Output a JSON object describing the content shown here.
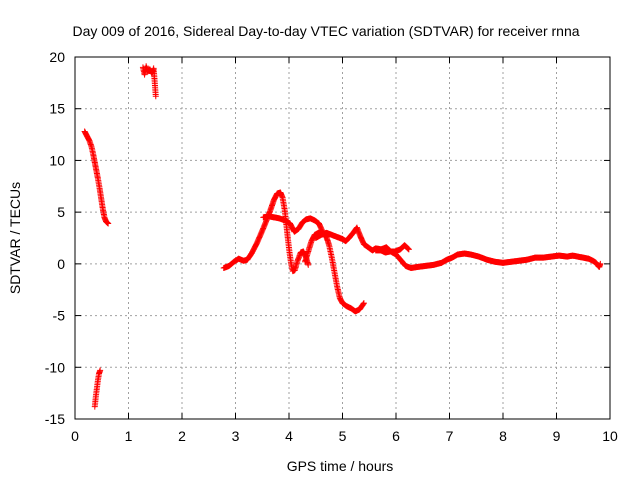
{
  "chart_data": {
    "type": "scatter",
    "title": "Day 009 of 2016, Sidereal Day-to-day VTEC variation (SDTVAR) for receiver rnna",
    "xlabel": "GPS time / hours",
    "ylabel": "SDTVAR / TECUs",
    "xlim": [
      0,
      10
    ],
    "ylim": [
      -15,
      20
    ],
    "xticks": [
      0,
      1,
      2,
      3,
      4,
      5,
      6,
      7,
      8,
      9,
      10
    ],
    "yticks": [
      -15,
      -10,
      -5,
      0,
      5,
      10,
      15,
      20
    ],
    "grid": true,
    "marker": "+",
    "series": [
      {
        "name": "SDTVAR",
        "color": "#ff0000",
        "segments": [
          [
            [
              0.18,
              12.8
            ],
            [
              0.22,
              12.4
            ],
            [
              0.27,
              11.9
            ],
            [
              0.31,
              11.3
            ],
            [
              0.34,
              10.6
            ],
            [
              0.37,
              9.8
            ],
            [
              0.4,
              9.0
            ],
            [
              0.43,
              8.2
            ],
            [
              0.46,
              7.3
            ],
            [
              0.49,
              6.3
            ],
            [
              0.52,
              5.3
            ],
            [
              0.55,
              4.5
            ],
            [
              0.58,
              4.1
            ],
            [
              0.62,
              3.9
            ]
          ],
          [
            [
              0.37,
              -13.8
            ],
            [
              0.39,
              -12.8
            ],
            [
              0.41,
              -12.0
            ],
            [
              0.43,
              -11.2
            ],
            [
              0.45,
              -10.6
            ],
            [
              0.47,
              -10.3
            ]
          ],
          [
            [
              1.27,
              19.0
            ],
            [
              1.3,
              18.3
            ],
            [
              1.33,
              19.1
            ],
            [
              1.36,
              18.6
            ],
            [
              1.4,
              18.8
            ],
            [
              1.44,
              18.4
            ],
            [
              1.47,
              18.9
            ],
            [
              1.49,
              17.6
            ],
            [
              1.51,
              16.2
            ]
          ],
          [
            [
              2.78,
              -0.4
            ],
            [
              2.88,
              -0.2
            ],
            [
              2.97,
              0.2
            ],
            [
              3.06,
              0.5
            ],
            [
              3.15,
              0.3
            ],
            [
              3.22,
              0.4
            ],
            [
              3.3,
              1.0
            ],
            [
              3.4,
              2.0
            ],
            [
              3.5,
              3.2
            ],
            [
              3.58,
              4.2
            ],
            [
              3.66,
              5.3
            ],
            [
              3.72,
              6.2
            ],
            [
              3.78,
              6.8
            ],
            [
              3.84,
              6.9
            ],
            [
              3.88,
              6.4
            ],
            [
              3.92,
              5.2
            ],
            [
              3.95,
              3.8
            ],
            [
              3.98,
              2.4
            ],
            [
              4.01,
              1.1
            ],
            [
              4.04,
              0.0
            ],
            [
              4.07,
              -0.7
            ],
            [
              4.11,
              -0.6
            ],
            [
              4.16,
              0.3
            ],
            [
              4.22,
              1.1
            ],
            [
              4.27,
              1.2
            ],
            [
              4.32,
              0.6
            ],
            [
              4.36,
              -0.1
            ]
          ],
          [
            [
              3.52,
              4.5
            ],
            [
              3.62,
              4.6
            ],
            [
              3.72,
              4.5
            ],
            [
              3.82,
              4.4
            ],
            [
              3.92,
              4.2
            ],
            [
              4.02,
              3.9
            ],
            [
              4.1,
              3.1
            ],
            [
              4.18,
              3.4
            ],
            [
              4.25,
              4.0
            ],
            [
              4.32,
              4.3
            ],
            [
              4.4,
              4.4
            ],
            [
              4.48,
              4.2
            ],
            [
              4.56,
              3.9
            ],
            [
              4.62,
              3.2
            ],
            [
              4.68,
              2.6
            ]
          ],
          [
            [
              4.3,
              0.2
            ],
            [
              4.36,
              1.2
            ],
            [
              4.42,
              2.2
            ],
            [
              4.48,
              2.8
            ],
            [
              4.55,
              3.0
            ],
            [
              4.62,
              3.1
            ],
            [
              4.7,
              2.6
            ],
            [
              4.75,
              1.8
            ],
            [
              4.8,
              0.6
            ],
            [
              4.85,
              -0.8
            ],
            [
              4.9,
              -2.2
            ],
            [
              4.95,
              -3.3
            ],
            [
              5.0,
              -3.8
            ],
            [
              5.08,
              -4.1
            ],
            [
              5.16,
              -4.3
            ],
            [
              5.24,
              -4.6
            ],
            [
              5.32,
              -4.4
            ],
            [
              5.4,
              -3.8
            ]
          ],
          [
            [
              4.5,
              2.5
            ],
            [
              4.6,
              2.8
            ],
            [
              4.7,
              3.0
            ],
            [
              4.8,
              2.8
            ],
            [
              4.9,
              2.6
            ],
            [
              5.0,
              2.4
            ],
            [
              5.06,
              2.2
            ],
            [
              5.12,
              2.5
            ],
            [
              5.2,
              3.0
            ],
            [
              5.27,
              3.5
            ],
            [
              5.33,
              2.7
            ],
            [
              5.4,
              1.9
            ],
            [
              5.48,
              1.6
            ],
            [
              5.56,
              1.3
            ],
            [
              5.62,
              1.5
            ],
            [
              5.72,
              1.4
            ],
            [
              5.82,
              1.6
            ],
            [
              5.9,
              1.2
            ],
            [
              5.98,
              1.2
            ],
            [
              6.08,
              1.4
            ],
            [
              6.16,
              1.8
            ],
            [
              6.24,
              1.4
            ]
          ],
          [
            [
              5.62,
              1.3
            ],
            [
              5.72,
              1.3
            ],
            [
              5.8,
              1.1
            ],
            [
              5.9,
              1.2
            ],
            [
              6.0,
              0.9
            ],
            [
              6.1,
              0.3
            ],
            [
              6.18,
              -0.2
            ],
            [
              6.28,
              -0.4
            ],
            [
              6.4,
              -0.3
            ],
            [
              6.55,
              -0.2
            ],
            [
              6.7,
              -0.1
            ],
            [
              6.85,
              0.1
            ],
            [
              6.95,
              0.4
            ],
            [
              7.05,
              0.6
            ],
            [
              7.15,
              0.9
            ],
            [
              7.28,
              1.0
            ],
            [
              7.4,
              0.9
            ],
            [
              7.55,
              0.7
            ],
            [
              7.7,
              0.4
            ],
            [
              7.85,
              0.2
            ],
            [
              8.0,
              0.1
            ],
            [
              8.15,
              0.2
            ],
            [
              8.3,
              0.3
            ],
            [
              8.45,
              0.4
            ],
            [
              8.6,
              0.6
            ],
            [
              8.75,
              0.6
            ],
            [
              8.9,
              0.7
            ],
            [
              9.05,
              0.8
            ],
            [
              9.2,
              0.7
            ],
            [
              9.3,
              0.8
            ],
            [
              9.4,
              0.7
            ],
            [
              9.5,
              0.6
            ],
            [
              9.6,
              0.5
            ],
            [
              9.68,
              0.3
            ],
            [
              9.74,
              0.1
            ],
            [
              9.78,
              -0.2
            ],
            [
              9.8,
              -0.3
            ],
            [
              9.82,
              0.0
            ]
          ]
        ]
      }
    ]
  }
}
